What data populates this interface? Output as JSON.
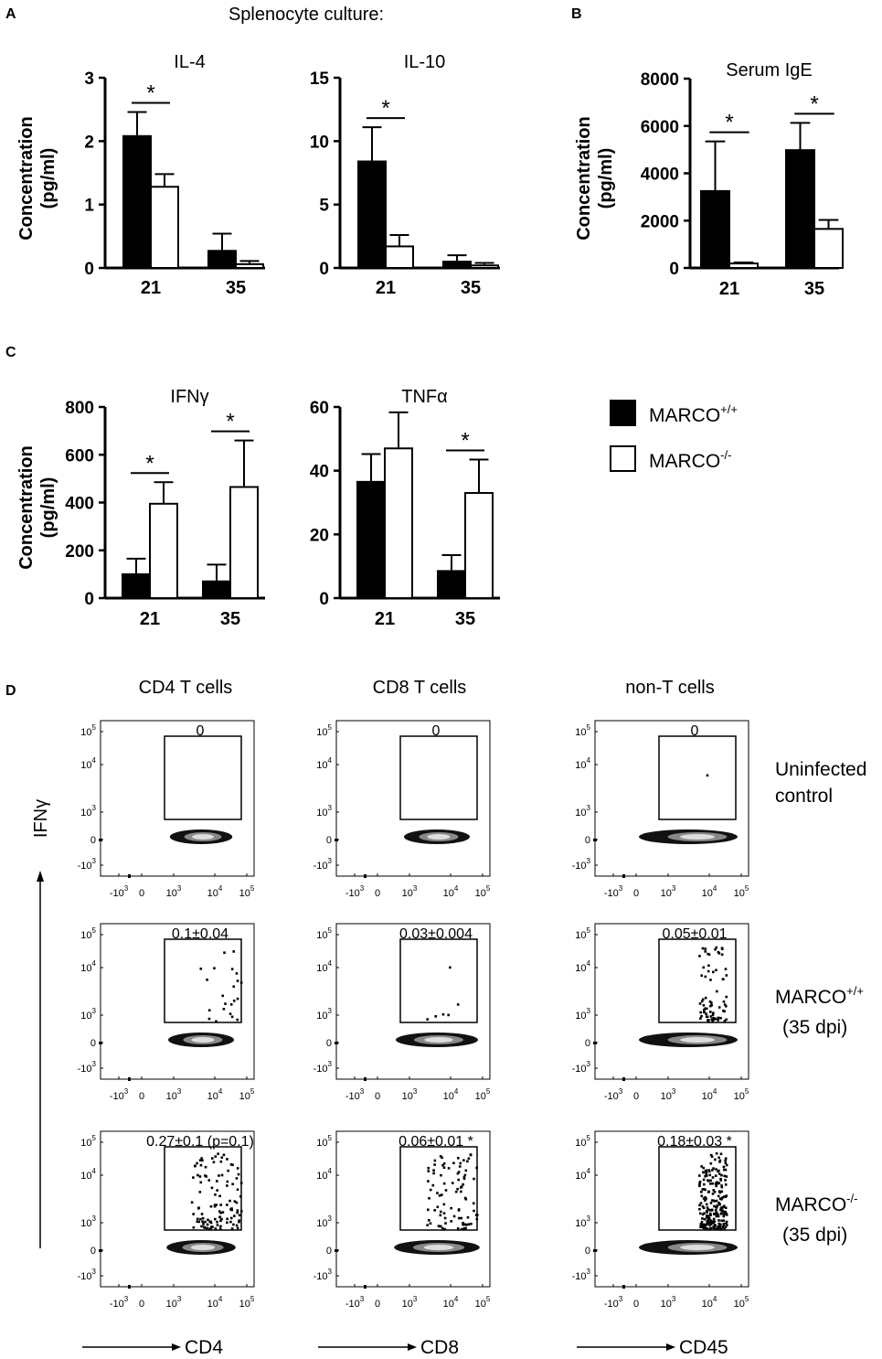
{
  "panel_labels": [
    "A",
    "B",
    "C",
    "D"
  ],
  "section_a_title": "Splenocyte culture:",
  "legend": [
    {
      "label": "MARCO",
      "sup": "+/+",
      "fill": "#000000"
    },
    {
      "label": "MARCO",
      "sup": "-/-",
      "fill": "#ffffff"
    }
  ],
  "colors": {
    "wildtype": "#000000",
    "knockout": "#ffffff",
    "axis": "#000000"
  },
  "chart_data": [
    {
      "id": "A1",
      "panel": "A",
      "type": "bar",
      "title": "IL-4",
      "ylabel": "Concentration (pg/ml)",
      "categories": [
        "21",
        "35"
      ],
      "ylim": [
        0,
        3
      ],
      "yticks": [
        "0",
        "1",
        "2",
        "3"
      ],
      "series": [
        {
          "name": "MARCO+/+",
          "values": [
            2.08,
            0.27
          ],
          "errors": [
            0.38,
            0.27
          ]
        },
        {
          "name": "MARCO-/-",
          "values": [
            1.28,
            0.06
          ],
          "errors": [
            0.2,
            0.05
          ]
        }
      ],
      "annotations": [
        {
          "text": "*",
          "category": "21"
        }
      ]
    },
    {
      "id": "A2",
      "panel": "A",
      "type": "bar",
      "title": "IL-10",
      "ylabel": "",
      "categories": [
        "21",
        "35"
      ],
      "ylim": [
        0,
        15
      ],
      "yticks": [
        "0",
        "5",
        "10",
        "15"
      ],
      "series": [
        {
          "name": "MARCO+/+",
          "values": [
            8.4,
            0.5
          ],
          "errors": [
            2.7,
            0.5
          ]
        },
        {
          "name": "MARCO-/-",
          "values": [
            1.7,
            0.2
          ],
          "errors": [
            0.9,
            0.2
          ]
        }
      ],
      "annotations": [
        {
          "text": "*",
          "category": "21"
        }
      ]
    },
    {
      "id": "B",
      "panel": "B",
      "type": "bar",
      "title": "Serum IgE",
      "ylabel": "Concentration (pg/ml)",
      "categories": [
        "21",
        "35"
      ],
      "ylim": [
        0,
        8000
      ],
      "yticks": [
        "0",
        "2000",
        "4000",
        "6000",
        "8000"
      ],
      "series": [
        {
          "name": "MARCO+/+",
          "values": [
            3250,
            4980
          ],
          "errors": [
            2100,
            1150
          ]
        },
        {
          "name": "MARCO-/-",
          "values": [
            190,
            1650
          ],
          "errors": [
            40,
            380
          ]
        }
      ],
      "annotations": [
        {
          "text": "*",
          "category": "21"
        },
        {
          "text": "*",
          "category": "35"
        }
      ]
    },
    {
      "id": "C1",
      "panel": "C",
      "type": "bar",
      "title": "IFNγ",
      "ylabel": "Concentration (pg/ml)",
      "categories": [
        "21",
        "35"
      ],
      "ylim": [
        0,
        800
      ],
      "yticks": [
        "0",
        "200",
        "400",
        "600",
        "800"
      ],
      "series": [
        {
          "name": "MARCO+/+",
          "values": [
            100,
            70
          ],
          "errors": [
            65,
            70
          ]
        },
        {
          "name": "MARCO-/-",
          "values": [
            395,
            465
          ],
          "errors": [
            90,
            195
          ]
        }
      ],
      "annotations": [
        {
          "text": "*",
          "category": "21"
        },
        {
          "text": "*",
          "category": "35"
        }
      ]
    },
    {
      "id": "C2",
      "panel": "C",
      "type": "bar",
      "title": "TNFα",
      "ylabel": "",
      "categories": [
        "21",
        "35"
      ],
      "ylim": [
        0,
        60
      ],
      "yticks": [
        "0",
        "20",
        "40",
        "60"
      ],
      "series": [
        {
          "name": "MARCO+/+",
          "values": [
            36.5,
            8.5
          ],
          "errors": [
            8.7,
            5
          ]
        },
        {
          "name": "MARCO-/-",
          "values": [
            47,
            33
          ],
          "errors": [
            11.3,
            10.5
          ]
        }
      ],
      "annotations": [
        {
          "text": "*",
          "category": "35"
        }
      ]
    }
  ],
  "flow": {
    "ylabel": "IFNγ",
    "columns": [
      {
        "title": "CD4 T cells",
        "xlabel": "CD4"
      },
      {
        "title": "CD8 T cells",
        "xlabel": "CD8"
      },
      {
        "title": "non-T cells",
        "xlabel": "CD45"
      }
    ],
    "rows": [
      {
        "label_lines": [
          "Uninfected",
          "control"
        ],
        "label_sup": "",
        "label_paren": "",
        "gate_values": [
          "0",
          "0",
          "0"
        ],
        "event_density": [
          0,
          0,
          1
        ],
        "spread": [
          0.45,
          0.5,
          1.0
        ]
      },
      {
        "label_lines": [
          "MARCO"
        ],
        "label_sup": "+/+",
        "label_paren": "(35 dpi)",
        "gate_values": [
          "0.1±0.04",
          "0.03±0.004",
          "0.05±0.01"
        ],
        "event_density": [
          22,
          6,
          70
        ],
        "spread": [
          0.5,
          0.75,
          1.0
        ]
      },
      {
        "label_lines": [
          "MARCO"
        ],
        "label_sup": "-/-",
        "label_paren": "(35 dpi)",
        "gate_values": [
          "0.27±0.1 (p=0.1)",
          "0.06±0.01  *",
          "0.18±0.03  *"
        ],
        "event_density": [
          110,
          90,
          220
        ],
        "spread": [
          0.55,
          0.8,
          1.0
        ]
      }
    ],
    "yticks": [
      {
        "b": "10",
        "s": "5"
      },
      {
        "b": "10",
        "s": "4"
      },
      {
        "b": "10",
        "s": "3"
      },
      {
        "b": "0",
        "s": ""
      },
      {
        "b": "-10",
        "s": "3"
      }
    ],
    "xticks": [
      {
        "b": "-10",
        "s": "3"
      },
      {
        "b": "0",
        "s": ""
      },
      {
        "b": "10",
        "s": "3"
      },
      {
        "b": "10",
        "s": "4"
      },
      {
        "b": "10",
        "s": "5"
      }
    ]
  }
}
